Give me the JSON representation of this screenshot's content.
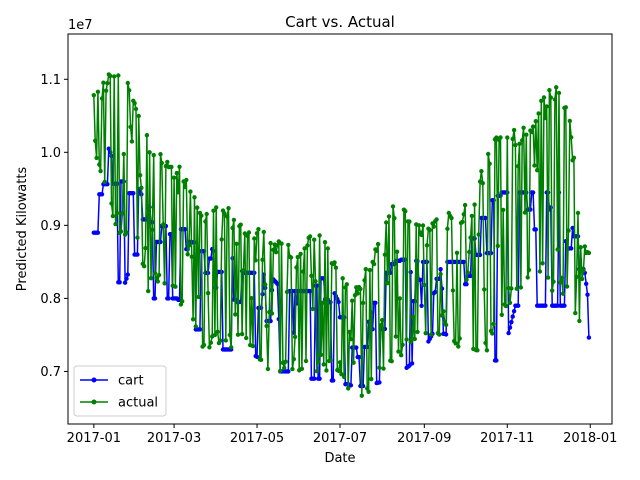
{
  "chart_data": {
    "type": "line",
    "title": "Cart vs. Actual",
    "xlabel": "Date",
    "ylabel": "Predicted Kilowatts",
    "y_offset_label": "1e7",
    "ylim": [
      6.28,
      11.62
    ],
    "xlim": [
      "2016-12-13",
      "2018-01-17"
    ],
    "x_ticks": [
      {
        "date": "2017-01-01",
        "label": "2017-01"
      },
      {
        "date": "2017-03-01",
        "label": "2017-03"
      },
      {
        "date": "2017-05-01",
        "label": "2017-05"
      },
      {
        "date": "2017-07-01",
        "label": "2017-07"
      },
      {
        "date": "2017-09-01",
        "label": "2017-09"
      },
      {
        "date": "2017-11-01",
        "label": "2017-11"
      },
      {
        "date": "2018-01-01",
        "label": "2018-01"
      }
    ],
    "y_ticks": [
      {
        "value": 7.0,
        "label": "0.7"
      },
      {
        "value": 8.0,
        "label": "0.8"
      },
      {
        "value": 9.0,
        "label": "0.9"
      },
      {
        "value": 10.0,
        "label": "1.0"
      },
      {
        "value": 11.0,
        "label": "1.1"
      }
    ],
    "grid": false,
    "legend_position": "lower-left",
    "start_date": "2017-01-01",
    "series": [
      {
        "name": "cart",
        "color": "#0000ff",
        "anchors": [
          [
            0,
            8.9
          ],
          [
            7,
            9.6
          ],
          [
            14,
            10.1
          ],
          [
            21,
            9.4
          ],
          [
            28,
            9.6
          ],
          [
            38,
            9.2
          ],
          [
            50,
            9.25
          ],
          [
            60,
            9.25
          ],
          [
            70,
            8.9
          ],
          [
            80,
            8.6
          ],
          [
            90,
            8.5
          ],
          [
            100,
            8.35
          ],
          [
            110,
            8.3
          ],
          [
            120,
            8.1
          ],
          [
            130,
            8.1
          ],
          [
            140,
            8.05
          ],
          [
            150,
            8.1
          ],
          [
            160,
            8.1
          ],
          [
            170,
            8.3
          ],
          [
            180,
            7.75
          ],
          [
            190,
            7.3
          ],
          [
            200,
            7.45
          ],
          [
            210,
            7.9
          ],
          [
            220,
            8.3
          ],
          [
            230,
            8.4
          ],
          [
            240,
            8.5
          ],
          [
            250,
            8.5
          ],
          [
            260,
            8.5
          ],
          [
            270,
            8.5
          ],
          [
            280,
            8.8
          ],
          [
            290,
            9.1
          ],
          [
            300,
            9.3
          ],
          [
            310,
            9.3
          ],
          [
            320,
            9.3
          ],
          [
            330,
            9.3
          ],
          [
            340,
            9.2
          ],
          [
            348,
            8.8
          ],
          [
            358,
            7.4
          ],
          [
            364,
            7.8
          ]
        ],
        "lows": [
          [
            0,
            8.9
          ],
          [
            10,
            8.9
          ],
          [
            20,
            8.05
          ],
          [
            30,
            8.6
          ],
          [
            40,
            8.0
          ],
          [
            50,
            8.0
          ],
          [
            60,
            8.0
          ],
          [
            70,
            7.9
          ],
          [
            80,
            7.25
          ],
          [
            90,
            7.3
          ],
          [
            100,
            7.3
          ],
          [
            110,
            7.3
          ],
          [
            120,
            7.2
          ],
          [
            130,
            7.0
          ],
          [
            140,
            7.0
          ],
          [
            150,
            6.9
          ],
          [
            160,
            6.9
          ],
          [
            170,
            6.9
          ],
          [
            180,
            6.85
          ],
          [
            190,
            6.8
          ],
          [
            200,
            6.8
          ],
          [
            210,
            6.85
          ],
          [
            220,
            6.85
          ],
          [
            230,
            7.05
          ],
          [
            240,
            7.2
          ],
          [
            250,
            7.55
          ],
          [
            260,
            7.5
          ],
          [
            270,
            7.5
          ],
          [
            280,
            7.3
          ],
          [
            290,
            7.15
          ],
          [
            300,
            7.15
          ],
          [
            310,
            7.9
          ],
          [
            320,
            7.9
          ],
          [
            330,
            7.9
          ],
          [
            340,
            7.9
          ],
          [
            350,
            7.9
          ],
          [
            358,
            6.95
          ],
          [
            364,
            6.95
          ]
        ],
        "highs": [
          [
            0,
            9.6
          ],
          [
            10,
            10.1
          ],
          [
            20,
            9.6
          ],
          [
            30,
            9.6
          ],
          [
            40,
            9.25
          ],
          [
            50,
            9.25
          ],
          [
            60,
            9.25
          ],
          [
            70,
            9.25
          ],
          [
            80,
            8.85
          ],
          [
            90,
            8.6
          ],
          [
            100,
            8.6
          ],
          [
            110,
            8.35
          ],
          [
            120,
            8.35
          ],
          [
            130,
            8.3
          ],
          [
            140,
            8.1
          ],
          [
            150,
            8.1
          ],
          [
            160,
            8.1
          ],
          [
            170,
            8.35
          ],
          [
            180,
            7.95
          ],
          [
            190,
            7.45
          ],
          [
            200,
            7.55
          ],
          [
            210,
            8.2
          ],
          [
            220,
            8.5
          ],
          [
            230,
            8.55
          ],
          [
            240,
            8.5
          ],
          [
            250,
            8.5
          ],
          [
            260,
            8.5
          ],
          [
            270,
            8.5
          ],
          [
            280,
            8.9
          ],
          [
            290,
            9.3
          ],
          [
            300,
            9.45
          ],
          [
            310,
            9.45
          ],
          [
            320,
            9.45
          ],
          [
            330,
            9.45
          ],
          [
            340,
            9.45
          ],
          [
            350,
            9.45
          ],
          [
            358,
            8.8
          ],
          [
            364,
            7.9
          ]
        ]
      },
      {
        "name": "actual",
        "color": "#008000",
        "lows": [
          [
            0,
            10.0
          ],
          [
            10,
            9.3
          ],
          [
            20,
            8.8
          ],
          [
            30,
            9.0
          ],
          [
            40,
            8.1
          ],
          [
            50,
            8.2
          ],
          [
            60,
            8.0
          ],
          [
            70,
            7.7
          ],
          [
            80,
            7.3
          ],
          [
            90,
            7.3
          ],
          [
            100,
            7.3
          ],
          [
            110,
            7.4
          ],
          [
            120,
            7.1
          ],
          [
            130,
            7.0
          ],
          [
            140,
            7.0
          ],
          [
            150,
            7.0
          ],
          [
            160,
            6.95
          ],
          [
            170,
            7.0
          ],
          [
            180,
            7.0
          ],
          [
            190,
            6.55
          ],
          [
            200,
            6.6
          ],
          [
            210,
            6.9
          ],
          [
            220,
            7.1
          ],
          [
            230,
            7.3
          ],
          [
            240,
            7.5
          ],
          [
            250,
            7.5
          ],
          [
            260,
            7.5
          ],
          [
            270,
            7.3
          ],
          [
            280,
            7.3
          ],
          [
            290,
            7.2
          ],
          [
            300,
            7.7
          ],
          [
            310,
            8.0
          ],
          [
            320,
            8.3
          ],
          [
            330,
            8.1
          ],
          [
            340,
            8.1
          ],
          [
            350,
            7.9
          ],
          [
            358,
            7.5
          ],
          [
            364,
            7.6
          ]
        ],
        "highs": [
          [
            0,
            10.8
          ],
          [
            10,
            11.2
          ],
          [
            20,
            11.3
          ],
          [
            30,
            10.8
          ],
          [
            40,
            10.2
          ],
          [
            50,
            10.0
          ],
          [
            60,
            9.9
          ],
          [
            70,
            9.6
          ],
          [
            80,
            9.2
          ],
          [
            90,
            9.3
          ],
          [
            100,
            9.3
          ],
          [
            110,
            9.0
          ],
          [
            120,
            9.0
          ],
          [
            130,
            8.85
          ],
          [
            140,
            8.75
          ],
          [
            150,
            8.7
          ],
          [
            160,
            8.9
          ],
          [
            170,
            8.85
          ],
          [
            180,
            8.4
          ],
          [
            190,
            8.1
          ],
          [
            200,
            8.4
          ],
          [
            210,
            8.8
          ],
          [
            220,
            9.3
          ],
          [
            230,
            9.2
          ],
          [
            240,
            9.0
          ],
          [
            250,
            9.1
          ],
          [
            260,
            9.3
          ],
          [
            270,
            9.2
          ],
          [
            280,
            9.5
          ],
          [
            290,
            10.0
          ],
          [
            300,
            10.5
          ],
          [
            310,
            10.3
          ],
          [
            320,
            10.4
          ],
          [
            330,
            10.8
          ],
          [
            340,
            10.9
          ],
          [
            350,
            10.6
          ],
          [
            358,
            8.8
          ],
          [
            364,
            8.7
          ]
        ]
      }
    ]
  }
}
